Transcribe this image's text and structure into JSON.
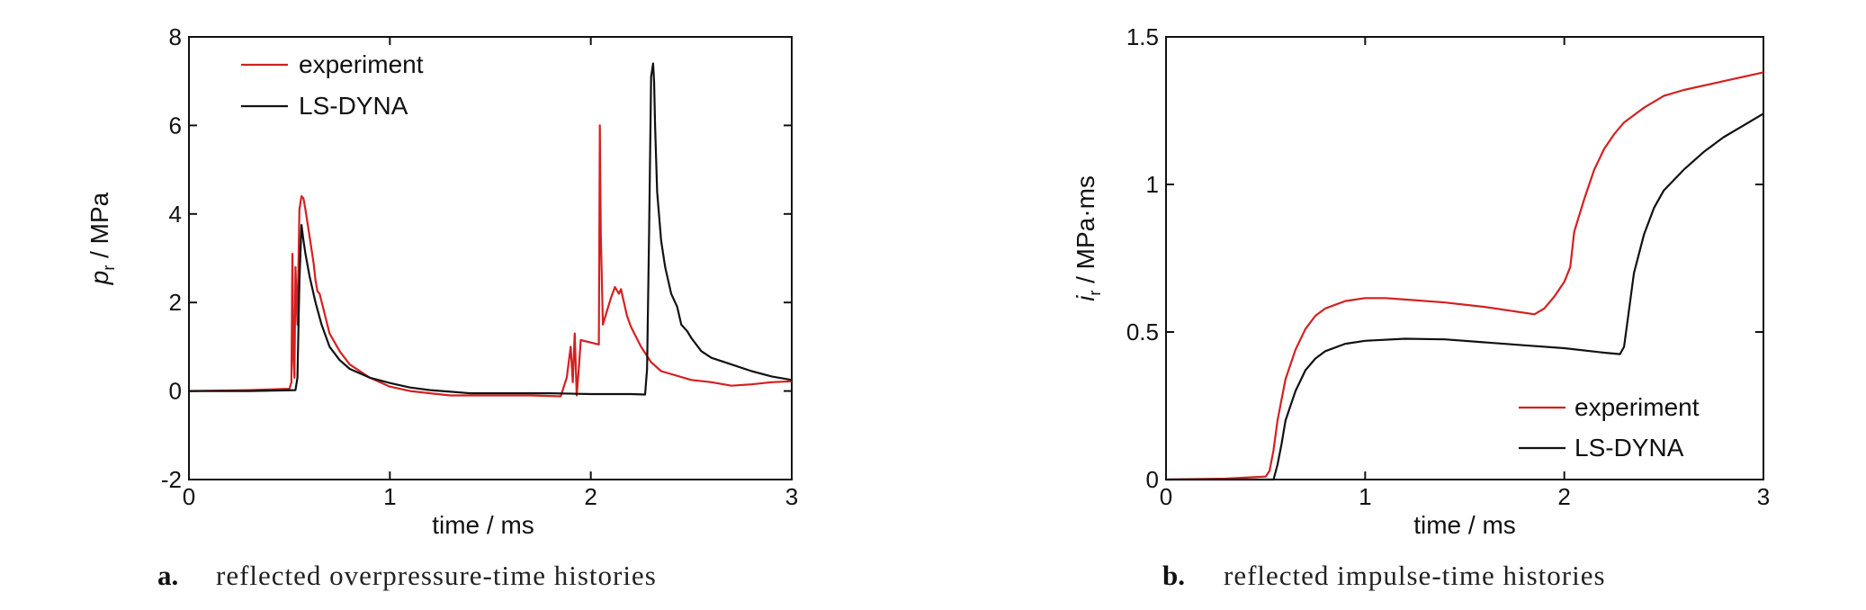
{
  "colors": {
    "experiment": "#d42020",
    "ls_dyna": "#111111",
    "axis": "#111111"
  },
  "chart_data": [
    {
      "type": "line",
      "panel": "a",
      "caption_letter": "a.",
      "caption": "reflected overpressure-time histories",
      "xlabel": "time / ms",
      "ylabel_main": "p",
      "ylabel_sub": "r",
      "ylabel_unit": " / MPa",
      "xlim": [
        0,
        3
      ],
      "ylim": [
        -2,
        8
      ],
      "xticks": [
        0,
        1,
        2,
        3
      ],
      "yticks": [
        -2,
        0,
        2,
        4,
        6,
        8
      ],
      "legend_position": "top-left",
      "series": [
        {
          "name": "experiment",
          "color_key": "experiment",
          "x": [
            0,
            0.3,
            0.5,
            0.51,
            0.515,
            0.52,
            0.525,
            0.53,
            0.54,
            0.55,
            0.56,
            0.57,
            0.58,
            0.6,
            0.62,
            0.63,
            0.64,
            0.65,
            0.7,
            0.75,
            0.8,
            0.9,
            1.0,
            1.1,
            1.2,
            1.3,
            1.5,
            1.7,
            1.85,
            1.88,
            1.9,
            1.91,
            1.92,
            1.93,
            1.94,
            1.95,
            2.04,
            2.045,
            2.05,
            2.06,
            2.08,
            2.1,
            2.12,
            2.14,
            2.15,
            2.16,
            2.18,
            2.2,
            2.25,
            2.3,
            2.35,
            2.5,
            2.6,
            2.7,
            2.8,
            2.9,
            3.0
          ],
          "y": [
            0,
            0.02,
            0.05,
            0.2,
            3.1,
            0.8,
            0.3,
            2.8,
            1.5,
            4.1,
            4.4,
            4.35,
            4.1,
            3.5,
            2.9,
            2.5,
            2.25,
            2.2,
            1.3,
            0.9,
            0.6,
            0.3,
            0.1,
            0.0,
            -0.05,
            -0.1,
            -0.1,
            -0.1,
            -0.12,
            0.3,
            1.0,
            0.2,
            1.3,
            -0.1,
            0.5,
            1.15,
            1.05,
            6.0,
            3.5,
            1.5,
            1.8,
            2.1,
            2.35,
            2.2,
            2.3,
            2.1,
            1.7,
            1.45,
            1.0,
            0.65,
            0.45,
            0.25,
            0.2,
            0.12,
            0.15,
            0.2,
            0.22
          ]
        },
        {
          "name": "LS-DYNA",
          "color_key": "ls_dyna",
          "x": [
            0,
            0.3,
            0.53,
            0.54,
            0.55,
            0.56,
            0.57,
            0.58,
            0.6,
            0.63,
            0.66,
            0.7,
            0.75,
            0.8,
            0.9,
            1.0,
            1.1,
            1.2,
            1.4,
            1.6,
            1.8,
            2.0,
            2.1,
            2.2,
            2.27,
            2.28,
            2.29,
            2.3,
            2.31,
            2.315,
            2.32,
            2.33,
            2.35,
            2.37,
            2.4,
            2.43,
            2.45,
            2.48,
            2.5,
            2.55,
            2.6,
            2.7,
            2.8,
            2.9,
            3.0
          ],
          "y": [
            0,
            0.0,
            0.02,
            0.3,
            2.5,
            3.75,
            3.4,
            3.1,
            2.6,
            2.0,
            1.5,
            1.0,
            0.7,
            0.5,
            0.3,
            0.18,
            0.08,
            0.02,
            -0.05,
            -0.05,
            -0.05,
            -0.07,
            -0.07,
            -0.07,
            -0.08,
            0.5,
            3.5,
            7.1,
            7.4,
            7.0,
            6.0,
            4.5,
            3.4,
            2.8,
            2.2,
            1.9,
            1.5,
            1.35,
            1.2,
            0.9,
            0.75,
            0.6,
            0.45,
            0.33,
            0.25
          ]
        }
      ]
    },
    {
      "type": "line",
      "panel": "b",
      "caption_letter": "b.",
      "caption": "reflected impulse-time histories",
      "xlabel": "time / ms",
      "ylabel_main": "i",
      "ylabel_sub": "r",
      "ylabel_unit": " / MPa·ms",
      "xlim": [
        0,
        3
      ],
      "ylim": [
        0,
        1.5
      ],
      "xticks": [
        0,
        1,
        2,
        3
      ],
      "yticks": [
        0,
        0.5,
        1,
        1.5
      ],
      "ytick_labels": [
        "0",
        "0.5",
        "1",
        "1.5"
      ],
      "legend_position": "bottom-right",
      "series": [
        {
          "name": "experiment",
          "color_key": "experiment",
          "x": [
            0,
            0.3,
            0.5,
            0.52,
            0.54,
            0.56,
            0.6,
            0.65,
            0.7,
            0.75,
            0.8,
            0.9,
            1.0,
            1.1,
            1.2,
            1.4,
            1.6,
            1.85,
            1.9,
            1.95,
            2.0,
            2.03,
            2.05,
            2.1,
            2.15,
            2.2,
            2.25,
            2.3,
            2.4,
            2.5,
            2.6,
            2.8,
            3.0
          ],
          "y": [
            0,
            0.003,
            0.01,
            0.03,
            0.1,
            0.2,
            0.34,
            0.44,
            0.51,
            0.555,
            0.58,
            0.605,
            0.615,
            0.615,
            0.61,
            0.6,
            0.585,
            0.56,
            0.58,
            0.62,
            0.67,
            0.72,
            0.84,
            0.95,
            1.05,
            1.12,
            1.17,
            1.21,
            1.26,
            1.3,
            1.32,
            1.35,
            1.38
          ]
        },
        {
          "name": "LS-DYNA",
          "color_key": "ls_dyna",
          "x": [
            0,
            0.3,
            0.54,
            0.56,
            0.58,
            0.6,
            0.65,
            0.7,
            0.75,
            0.8,
            0.9,
            1.0,
            1.2,
            1.4,
            1.6,
            1.8,
            2.0,
            2.2,
            2.28,
            2.3,
            2.32,
            2.35,
            2.4,
            2.45,
            2.5,
            2.6,
            2.7,
            2.8,
            2.9,
            3.0
          ],
          "y": [
            0,
            0,
            0.0,
            0.05,
            0.12,
            0.2,
            0.3,
            0.37,
            0.41,
            0.435,
            0.46,
            0.47,
            0.477,
            0.475,
            0.465,
            0.455,
            0.445,
            0.43,
            0.425,
            0.45,
            0.55,
            0.7,
            0.83,
            0.92,
            0.98,
            1.05,
            1.11,
            1.16,
            1.2,
            1.24
          ]
        }
      ]
    }
  ]
}
